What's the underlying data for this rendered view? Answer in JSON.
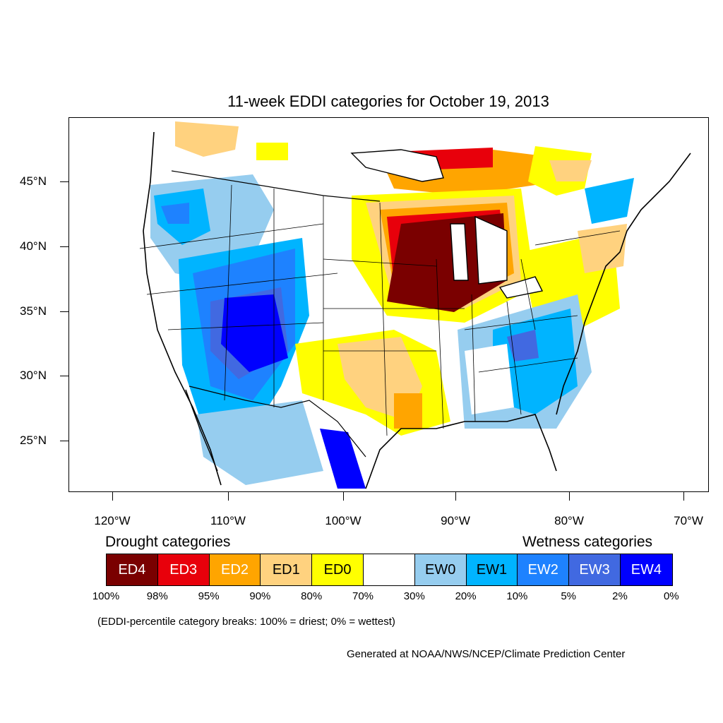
{
  "title": "11-week EDDI categories for October 19, 2013",
  "map": {
    "region": "Contiguous United States",
    "projection": "Lambert conformal",
    "lat_labels": [
      "45°N",
      "40°N",
      "35°N",
      "30°N",
      "25°N"
    ],
    "lon_labels": [
      "120°W",
      "110°W",
      "100°W",
      "90°W",
      "80°W",
      "70°W"
    ]
  },
  "legend": {
    "drought_heading": "Drought categories",
    "wetness_heading": "Wetness categories",
    "categories": [
      {
        "label": "ED4",
        "color": "#7a0000",
        "text_color": "#ffffff"
      },
      {
        "label": "ED3",
        "color": "#e8000b",
        "text_color": "#ffffff"
      },
      {
        "label": "ED2",
        "color": "#ffa500",
        "text_color": "#ffffff"
      },
      {
        "label": "ED1",
        "color": "#ffd27f",
        "text_color": "#000000"
      },
      {
        "label": "ED0",
        "color": "#ffff00",
        "text_color": "#000000"
      },
      {
        "label": "",
        "color": "#ffffff",
        "text_color": "#000000"
      },
      {
        "label": "EW0",
        "color": "#96cdef",
        "text_color": "#000000"
      },
      {
        "label": "EW1",
        "color": "#00b4ff",
        "text_color": "#000000"
      },
      {
        "label": "EW2",
        "color": "#1e82ff",
        "text_color": "#ffffff"
      },
      {
        "label": "EW3",
        "color": "#4169e1",
        "text_color": "#ffffff"
      },
      {
        "label": "EW4",
        "color": "#0000ff",
        "text_color": "#ffffff"
      }
    ],
    "breaks": [
      "100%",
      "98%",
      "95%",
      "90%",
      "80%",
      "70%",
      "30%",
      "20%",
      "10%",
      "5%",
      "2%",
      "0%"
    ]
  },
  "note": "(EDDI-percentile category breaks: 100% = driest; 0% = wettest)",
  "credit": "Generated at NOAA/NWS/NCEP/Climate Prediction Center"
}
